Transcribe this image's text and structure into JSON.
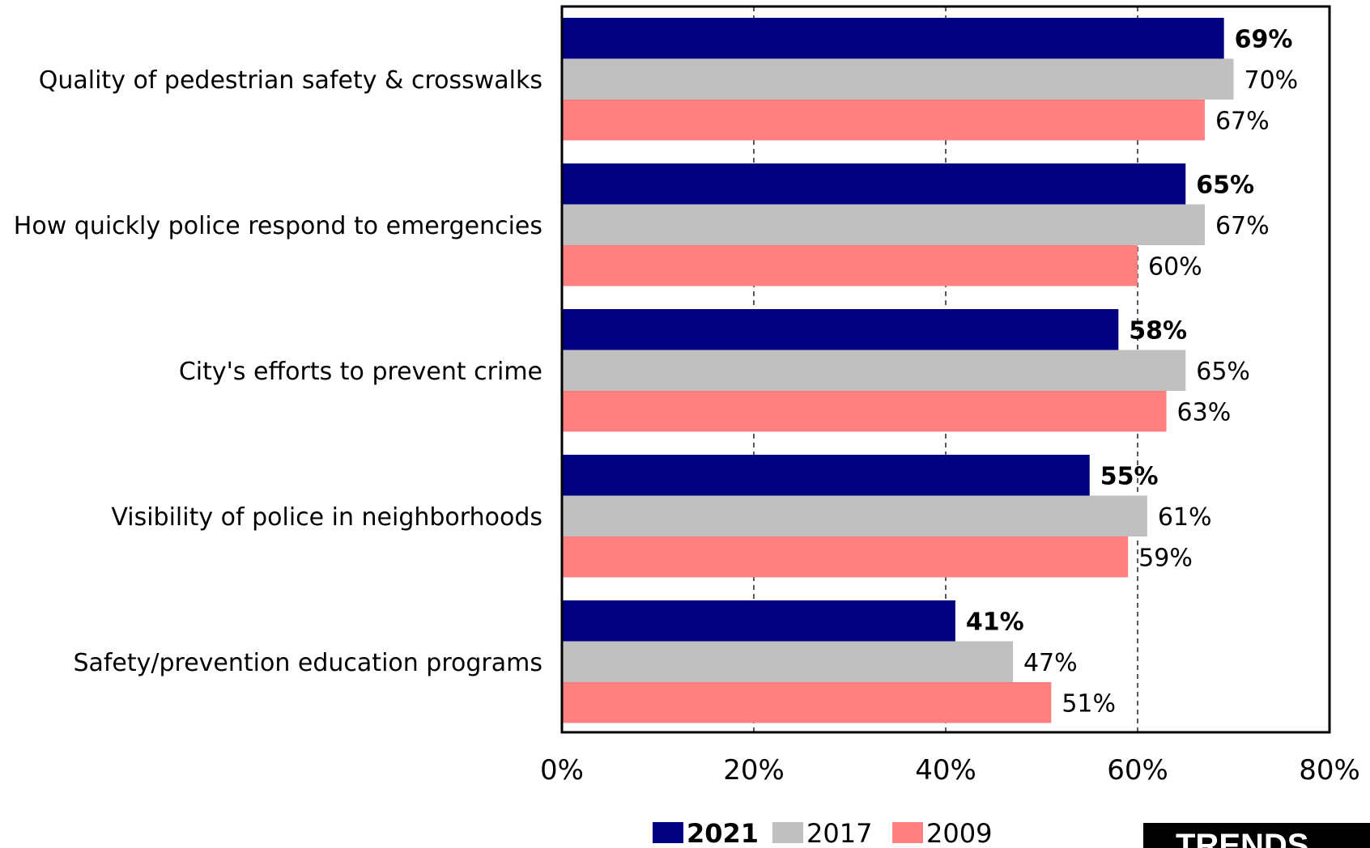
{
  "chart_data": {
    "type": "bar",
    "orientation": "horizontal",
    "categories": [
      "Quality of pedestrian safety & crosswalks",
      "How quickly police respond to emergencies",
      "City's efforts to prevent crime",
      "Visibility of police in neighborhoods",
      "Safety/prevention education programs"
    ],
    "series": [
      {
        "name": "2021",
        "color": "#000080",
        "bold_labels": true,
        "values": [
          69,
          65,
          58,
          55,
          41
        ]
      },
      {
        "name": "2017",
        "color": "#C0C0C0",
        "bold_labels": false,
        "values": [
          70,
          67,
          65,
          61,
          47
        ]
      },
      {
        "name": "2009",
        "color": "#FF8080",
        "bold_labels": false,
        "values": [
          67,
          60,
          63,
          59,
          51
        ]
      }
    ],
    "value_labels": [
      [
        "69%",
        "65%",
        "58%",
        "55%",
        "41%"
      ],
      [
        "70%",
        "67%",
        "65%",
        "61%",
        "47%"
      ],
      [
        "67%",
        "60%",
        "63%",
        "59%",
        "51%"
      ]
    ],
    "xlim": [
      0,
      80
    ],
    "xticks": [
      0,
      20,
      40,
      60,
      80
    ],
    "xtick_labels": [
      "0%",
      "20%",
      "40%",
      "60%",
      "80%"
    ],
    "grid": "vertical dashed",
    "legend_position": "bottom",
    "title": "",
    "xlabel": "",
    "ylabel": ""
  },
  "badge": {
    "text": "TRENDS",
    "color": "#000000"
  }
}
